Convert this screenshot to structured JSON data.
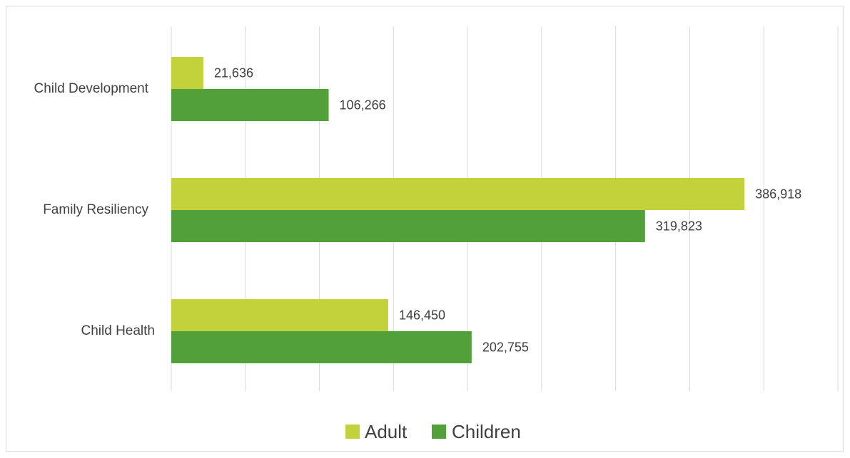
{
  "chart_data": {
    "type": "bar",
    "orientation": "horizontal",
    "categories": [
      "Child Development",
      "Family Resiliency",
      "Child Health"
    ],
    "series": [
      {
        "name": "Adult",
        "color": "#c3d13b",
        "values": [
          21636,
          386918,
          146450
        ],
        "labels": [
          "21,636",
          "386,918",
          "146,450"
        ]
      },
      {
        "name": "Children",
        "color": "#52a03a",
        "values": [
          106266,
          319823,
          202755
        ],
        "labels": [
          "106,266",
          "319,823",
          "202,755"
        ]
      }
    ],
    "xlim": [
      0,
      450000
    ],
    "x_tick_step": 50000,
    "grid": true,
    "legend": "bottom"
  }
}
